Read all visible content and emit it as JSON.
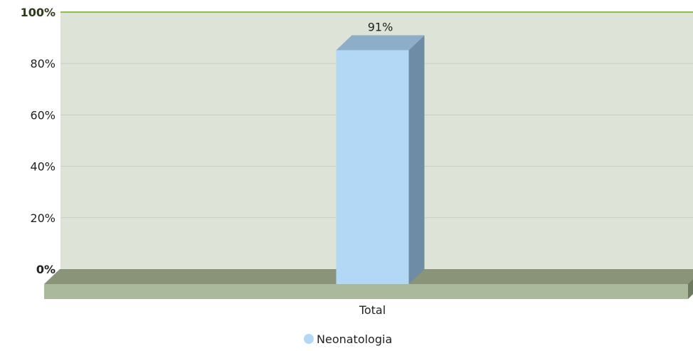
{
  "chart_data": {
    "type": "bar",
    "title": "",
    "xlabel": "",
    "ylabel": "",
    "categories": [
      "Total"
    ],
    "series": [
      {
        "name": "Neonatologia",
        "values": [
          91
        ],
        "color": "#b3d8f5"
      }
    ],
    "value_labels": [
      "91%"
    ],
    "y_ticks": [
      "0%",
      "20%",
      "40%",
      "60%",
      "80%",
      "100%"
    ],
    "y_tick_values": [
      0,
      20,
      40,
      60,
      80,
      100
    ],
    "ylim": [
      0,
      100
    ],
    "grid": true,
    "legend": "bottom-center",
    "three_d": true,
    "colors": {
      "plot_background": "#dde3d6",
      "gridline": "#c8d0c6",
      "top_line": "#8fbf4a",
      "floor_top": "#8a9479",
      "floor_front": "#aab99b",
      "bar_front": "#b3d8f5",
      "bar_top": "#8eaec8",
      "bar_side": "#6f8ca5"
    }
  }
}
